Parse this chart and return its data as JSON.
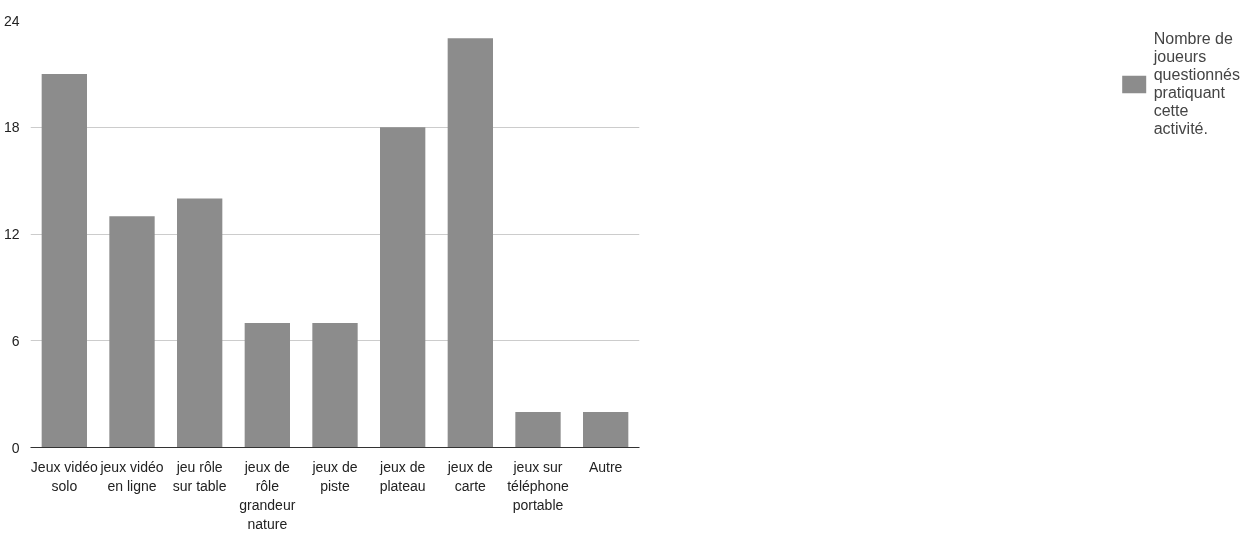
{
  "chart_data": {
    "type": "bar",
    "categories": [
      "Jeux vidéo solo",
      "jeux vidéo en ligne",
      "jeu rôle sur table",
      "jeux de rôle grandeur nature",
      "jeux de piste",
      "jeux de plateau",
      "jeux de carte",
      "jeux sur téléphone portable",
      "Autre"
    ],
    "series": [
      {
        "name": "Nombre de joueurs questionnés pratiquant cette activité.",
        "color": "#8c8c8c",
        "values": [
          21,
          13,
          14,
          7,
          7,
          18,
          23,
          2,
          2
        ]
      }
    ],
    "ylim": [
      0,
      24
    ],
    "yticks": [
      0,
      6,
      12,
      18,
      24
    ],
    "grid": "y",
    "legend": "right"
  }
}
